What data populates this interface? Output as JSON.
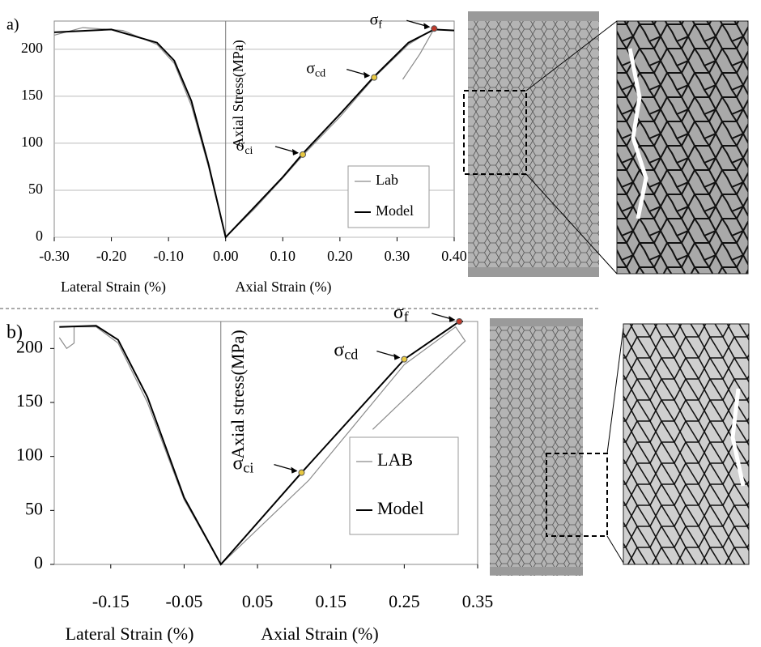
{
  "chart_data": [
    {
      "type": "line",
      "panel_label": "a)",
      "ylabel": "Axial Stress(MPa)",
      "xlabels": [
        "Lateral Strain (%)",
        "Axial Strain (%)"
      ],
      "xlim": [
        -0.3,
        0.4
      ],
      "xticks": [
        {
          "value": -0.3,
          "label": "-0.30"
        },
        {
          "value": -0.2,
          "label": "-0.20"
        },
        {
          "value": -0.1,
          "label": "-0.10"
        },
        {
          "value": 0,
          "label": "0.00"
        },
        {
          "value": 0.1,
          "label": "0.10"
        },
        {
          "value": 0.2,
          "label": "0.20"
        },
        {
          "value": 0.3,
          "label": "0.30"
        },
        {
          "value": 0.4,
          "label": "0.40"
        }
      ],
      "ylim": [
        0,
        230
      ],
      "yticks": [
        0,
        50,
        100,
        150,
        200
      ],
      "grid": true,
      "legend": "lower right",
      "series": [
        {
          "name": "Lab",
          "color": "#8a8a8a",
          "x": [
            -0.3,
            -0.25,
            -0.18,
            -0.12,
            -0.09,
            -0.06,
            -0.03,
            0,
            0.05,
            0.1,
            0.135,
            0.2,
            0.26,
            0.32,
            0.365,
            0.34,
            0.31
          ],
          "values": [
            215,
            223,
            220,
            205,
            185,
            140,
            75,
            0,
            30,
            63,
            87,
            128,
            170,
            205,
            222,
            195,
            168
          ]
        },
        {
          "name": "Model",
          "color": "#000000",
          "x": [
            -0.3,
            -0.2,
            -0.12,
            -0.09,
            -0.06,
            -0.03,
            0,
            0.05,
            0.1,
            0.135,
            0.2,
            0.26,
            0.32,
            0.365,
            0.4
          ],
          "values": [
            218,
            221,
            207,
            188,
            145,
            78,
            0,
            32,
            64,
            89,
            131,
            171,
            207,
            221,
            220
          ]
        }
      ],
      "annotations": [
        {
          "symbol": "σ",
          "subscript": "f",
          "x": 0.365,
          "y": 222,
          "color": "#c0392b"
        },
        {
          "symbol": "σ",
          "subscript": "cd",
          "x": 0.26,
          "y": 170,
          "color": "#e8c840"
        },
        {
          "symbol": "σ",
          "subscript": "ci",
          "x": 0.135,
          "y": 88,
          "color": "#e8c840"
        }
      ]
    },
    {
      "type": "line",
      "panel_label": "b)",
      "ylabel": "Axial stress(MPa)",
      "xlabels": [
        "Lateral Strain (%)",
        "Axial Strain (%)"
      ],
      "xlim": [
        -0.227,
        0.35
      ],
      "xticks": [
        -0.15,
        -0.05,
        0.05,
        0.15,
        0.25,
        0.35
      ],
      "ylim": [
        0,
        225
      ],
      "yticks": [
        0,
        50,
        100,
        150,
        200
      ],
      "grid": false,
      "legend": "center right",
      "series": [
        {
          "name": "LAB",
          "color": "#8a8a8a",
          "x": [
            -0.22,
            -0.21,
            -0.2,
            -0.2,
            -0.17,
            -0.14,
            -0.1,
            -0.05,
            0,
            0.12,
            0.25,
            0.32,
            0.333,
            0.207
          ],
          "values": [
            210,
            200,
            205,
            220,
            220,
            205,
            150,
            60,
            0,
            78,
            185,
            220,
            207,
            125
          ]
        },
        {
          "name": "Model",
          "color": "#000000",
          "x": [
            -0.22,
            -0.17,
            -0.14,
            -0.1,
            -0.05,
            0,
            0.11,
            0.25,
            0.325,
            0.33
          ],
          "values": [
            220,
            221,
            208,
            155,
            62,
            0,
            85,
            190,
            225,
            225
          ]
        }
      ],
      "annotations": [
        {
          "symbol": "σ",
          "subscript": "f",
          "x": 0.325,
          "y": 225,
          "color": "#c0392b"
        },
        {
          "symbol": "σ",
          "subscript": "cd",
          "x": 0.25,
          "y": 190,
          "color": "#e8c840"
        },
        {
          "symbol": "σ",
          "subscript": "ci",
          "x": 0.11,
          "y": 85,
          "color": "#e8c840"
        }
      ]
    }
  ]
}
